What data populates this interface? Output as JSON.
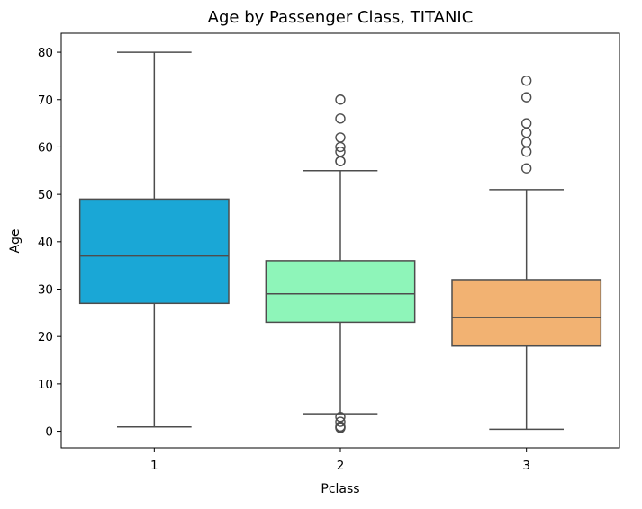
{
  "chart_data": {
    "type": "box",
    "title": "Age by Passenger Class, TITANIC",
    "xlabel": "Pclass",
    "ylabel": "Age",
    "ylim": [
      -3.5,
      84
    ],
    "yticks": [
      0,
      10,
      20,
      30,
      40,
      50,
      60,
      70,
      80
    ],
    "grid": false,
    "legend": "none",
    "categories": [
      "1",
      "2",
      "3"
    ],
    "boxes": [
      {
        "category": "1",
        "color": "#1aa7d6",
        "whisker_low": 0.92,
        "q1": 27,
        "median": 37,
        "q3": 49,
        "whisker_high": 80,
        "outliers": []
      },
      {
        "category": "2",
        "color": "#8ef5b9",
        "whisker_low": 3.7,
        "q1": 23,
        "median": 29,
        "q3": 36,
        "whisker_high": 55,
        "outliers": [
          0.67,
          0.83,
          1,
          2,
          3,
          57,
          57,
          59,
          60,
          62,
          66,
          70
        ]
      },
      {
        "category": "3",
        "color": "#f2b272",
        "whisker_low": 0.42,
        "q1": 18,
        "median": 24,
        "q3": 32,
        "whisker_high": 51,
        "outliers": [
          55.5,
          59,
          61,
          63,
          65,
          70.5,
          74
        ]
      }
    ]
  }
}
